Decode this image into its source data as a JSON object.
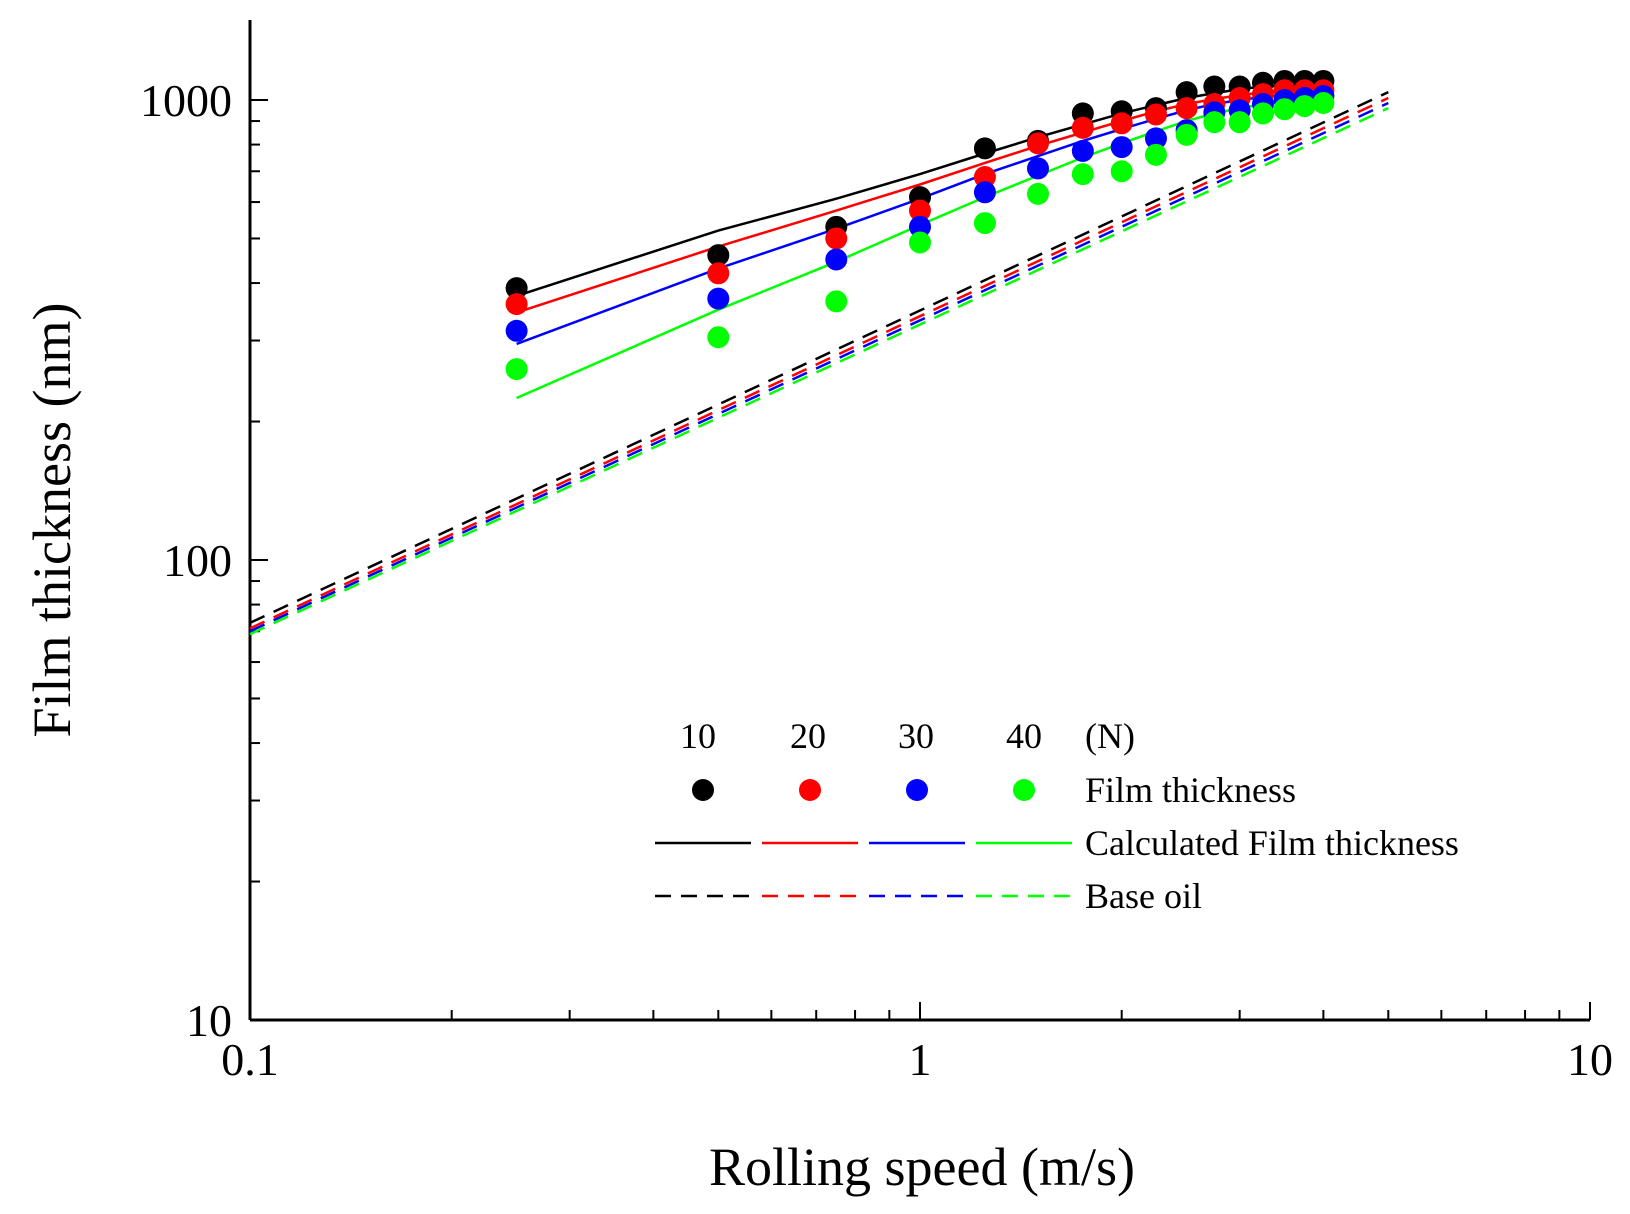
{
  "chart_data": {
    "type": "scatter",
    "x_scale": "log",
    "y_scale": "log",
    "xlim": [
      0.1,
      10
    ],
    "ylim": [
      10,
      1600
    ],
    "xlabel": "Rolling speed (m/s)",
    "ylabel": "Film thickness (nm)",
    "x_ticks": [
      0.1,
      1,
      10
    ],
    "x_tick_labels": [
      "0.1",
      "1",
      "10"
    ],
    "y_ticks": [
      10,
      100,
      1000
    ],
    "y_tick_labels": [
      "10",
      "100",
      "1000"
    ],
    "legend": {
      "placement": "lower-right",
      "loads": [
        "10",
        "20",
        "30",
        "40"
      ],
      "unit": "(N)",
      "rows": [
        "Film thickness",
        "Calculated Film thickness",
        "Base oil"
      ]
    },
    "x": [
      0.25,
      0.5,
      0.75,
      1.0,
      1.25,
      1.5,
      1.75,
      2.0,
      2.25,
      2.5,
      2.75,
      3.0,
      3.25,
      3.5,
      3.75,
      4.0
    ],
    "series": [
      {
        "load": "10",
        "color": "#000000",
        "measured": [
          390,
          460,
          530,
          615,
          785,
          815,
          935,
          945,
          960,
          1040,
          1070,
          1070,
          1090,
          1100,
          1100,
          1100
        ],
        "calculated": [
          375,
          520,
          610,
          690,
          765,
          830,
          885,
          935,
          975,
          1010,
          1035,
          1055,
          1070,
          1075,
          1080,
          1082
        ],
        "base_oil": {
          "x": [
            0.1,
            5.0
          ],
          "y": [
            73,
            1040
          ]
        }
      },
      {
        "load": "20",
        "color": "#ff0000",
        "measured": [
          360,
          420,
          500,
          575,
          680,
          805,
          870,
          890,
          930,
          960,
          980,
          1010,
          1030,
          1050,
          1050,
          1050
        ],
        "calculated": [
          345,
          480,
          575,
          655,
          730,
          795,
          850,
          900,
          945,
          980,
          1005,
          1025,
          1040,
          1050,
          1055,
          1057
        ],
        "base_oil": {
          "x": [
            0.1,
            5.0
          ],
          "y": [
            71,
            1010
          ]
        }
      },
      {
        "load": "30",
        "color": "#0000ff",
        "measured": [
          315,
          370,
          450,
          530,
          630,
          710,
          775,
          790,
          825,
          860,
          940,
          950,
          980,
          1000,
          1010,
          1020
        ],
        "calculated": [
          295,
          430,
          525,
          610,
          690,
          755,
          815,
          865,
          910,
          950,
          980,
          1000,
          1015,
          1025,
          1030,
          1032
        ],
        "base_oil": {
          "x": [
            0.1,
            5.0
          ],
          "y": [
            70,
            985
          ]
        }
      },
      {
        "load": "40",
        "color": "#00ff00",
        "measured": [
          260,
          305,
          365,
          490,
          540,
          625,
          690,
          700,
          760,
          840,
          895,
          895,
          935,
          955,
          970,
          985
        ],
        "calculated": [
          225,
          350,
          445,
          535,
          615,
          685,
          750,
          805,
          855,
          900,
          935,
          960,
          980,
          995,
          1002,
          1005
        ],
        "base_oil": {
          "x": [
            0.1,
            5.0
          ],
          "y": [
            69,
            960
          ]
        }
      }
    ]
  }
}
